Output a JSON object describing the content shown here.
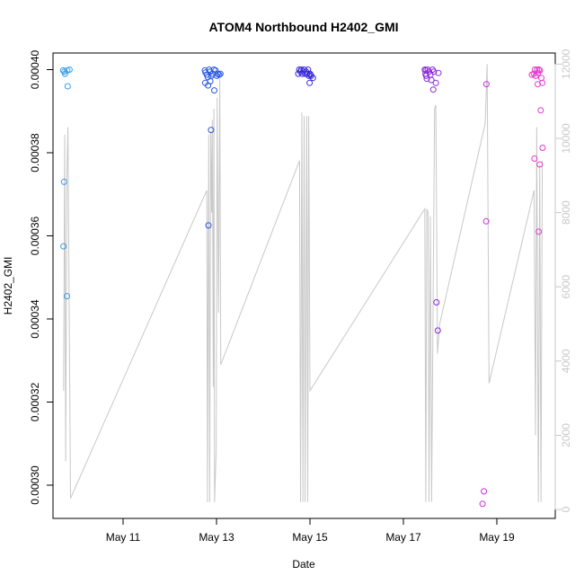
{
  "chart_data": {
    "type": "scatter",
    "title": "ATOM4 Northbound H2402_GMI",
    "xlabel": "Date",
    "ylabel": "H2402_GMI",
    "x_unit": "date",
    "xlim": [
      "2022-05-09T12:00",
      "2022-05-20T06:00"
    ],
    "ylim": [
      0.000292,
      0.000404
    ],
    "y2lim": [
      -240,
      12300
    ],
    "grid": false,
    "legend": "none",
    "x_ticks": [
      {
        "value": "2022-05-11",
        "label": "May 11"
      },
      {
        "value": "2022-05-13",
        "label": "May 13"
      },
      {
        "value": "2022-05-15",
        "label": "May 15"
      },
      {
        "value": "2022-05-17",
        "label": "May 17"
      },
      {
        "value": "2022-05-19",
        "label": "May 19"
      }
    ],
    "y_ticks": [
      {
        "value": 0.0003,
        "label": "0.00030"
      },
      {
        "value": 0.00032,
        "label": "0.00032"
      },
      {
        "value": 0.00034,
        "label": "0.00034"
      },
      {
        "value": 0.00036,
        "label": "0.00036"
      },
      {
        "value": 0.00038,
        "label": "0.00038"
      },
      {
        "value": 0.0004,
        "label": "0.00040"
      }
    ],
    "y2_ticks": [
      {
        "value": 0,
        "label": "0"
      },
      {
        "value": 2000,
        "label": "2000"
      },
      {
        "value": 4000,
        "label": "4000"
      },
      {
        "value": 6000,
        "label": "6000"
      },
      {
        "value": 8000,
        "label": "8000"
      },
      {
        "value": 10000,
        "label": "10000"
      },
      {
        "value": 12000,
        "label": "12000"
      }
    ],
    "colors": {
      "line": "#c8c8c8",
      "axis": "#000000",
      "right_axis": "#c8c8c8",
      "day_colors": [
        "#3a9fe8",
        "#2b59e0",
        "#3a2ad8",
        "#8a2ad8",
        "#cc2ad8",
        "#e33ad0"
      ]
    },
    "line_series": [
      [
        "2022-05-09T17:28",
        3200
      ],
      [
        "2022-05-09T18:00",
        10100
      ],
      [
        "2022-05-09T18:30",
        1300
      ],
      [
        "2022-05-09T19:10",
        9000
      ],
      [
        "2022-05-09T19:40",
        10300
      ],
      [
        "2022-05-09T21:00",
        300
      ],
      [
        "2022-05-12T19:00",
        8600
      ],
      [
        "2022-05-12T19:20",
        200
      ],
      [
        "2022-05-12T20:00",
        10100
      ],
      [
        "2022-05-12T20:30",
        200
      ],
      [
        "2022-05-12T21:00",
        10200
      ],
      [
        "2022-05-12T21:30",
        8000
      ],
      [
        "2022-05-12T21:50",
        10500
      ],
      [
        "2022-05-12T22:20",
        3300
      ],
      [
        "2022-05-12T22:40",
        10800
      ],
      [
        "2022-05-12T23:00",
        200
      ],
      [
        "2022-05-12T23:50",
        1600
      ],
      [
        "2022-05-13T00:20",
        11100
      ],
      [
        "2022-05-13T01:00",
        5300
      ],
      [
        "2022-05-13T01:40",
        11600
      ],
      [
        "2022-05-13T02:10",
        3900
      ],
      [
        "2022-05-14T18:40",
        9400
      ],
      [
        "2022-05-14T19:10",
        200
      ],
      [
        "2022-05-14T19:50",
        10700
      ],
      [
        "2022-05-14T20:20",
        200
      ],
      [
        "2022-05-14T21:00",
        10600
      ],
      [
        "2022-05-14T21:30",
        200
      ],
      [
        "2022-05-14T22:20",
        10600
      ],
      [
        "2022-05-14T22:50",
        200
      ],
      [
        "2022-05-14T23:20",
        10600
      ],
      [
        "2022-05-15T00:00",
        3200
      ],
      [
        "2022-05-17T11:00",
        8100
      ],
      [
        "2022-05-17T11:30",
        200
      ],
      [
        "2022-05-17T12:00",
        8100
      ],
      [
        "2022-05-17T12:40",
        8000
      ],
      [
        "2022-05-17T13:10",
        200
      ],
      [
        "2022-05-17T13:50",
        7900
      ],
      [
        "2022-05-17T14:30",
        200
      ],
      [
        "2022-05-17T16:00",
        10800
      ],
      [
        "2022-05-17T16:40",
        10900
      ],
      [
        "2022-05-17T17:30",
        4200
      ],
      [
        "2022-05-17T18:40",
        5000
      ],
      [
        "2022-05-18T18:00",
        10400
      ],
      [
        "2022-05-18T19:00",
        12000
      ],
      [
        "2022-05-18T20:00",
        3400
      ],
      [
        "2022-05-19T19:10",
        8600
      ],
      [
        "2022-05-19T19:50",
        2000
      ],
      [
        "2022-05-19T20:30",
        10300
      ],
      [
        "2022-05-19T21:20",
        200
      ],
      [
        "2022-05-19T22:00",
        9300
      ],
      [
        "2022-05-19T22:40",
        200
      ],
      [
        "2022-05-19T23:20",
        9400
      ]
    ],
    "points": [
      [
        "2022-05-09T17:10",
        0.0003998,
        0
      ],
      [
        "2022-05-09T17:50",
        0.0003995,
        0
      ],
      [
        "2022-05-09T18:10",
        0.000399,
        0
      ],
      [
        "2022-05-09T19:20",
        0.0003998,
        0
      ],
      [
        "2022-05-09T20:30",
        0.0004,
        0
      ],
      [
        "2022-05-09T19:30",
        0.000396,
        0
      ],
      [
        "2022-05-09T17:40",
        0.000373,
        0
      ],
      [
        "2022-05-09T17:20",
        0.0003575,
        0
      ],
      [
        "2022-05-09T19:10",
        0.0003455,
        0
      ],
      [
        "2022-05-12T18:00",
        0.0003998,
        1
      ],
      [
        "2022-05-12T18:20",
        0.0003993,
        1
      ],
      [
        "2022-05-12T19:00",
        0.0003988,
        1
      ],
      [
        "2022-05-12T19:30",
        0.0003982,
        1
      ],
      [
        "2022-05-12T20:10",
        0.0004,
        1
      ],
      [
        "2022-05-12T20:40",
        0.0003995,
        1
      ],
      [
        "2022-05-12T21:20",
        0.0003985,
        1
      ],
      [
        "2022-05-12T22:00",
        0.000399,
        1
      ],
      [
        "2022-05-12T22:40",
        0.0004,
        1
      ],
      [
        "2022-05-12T23:30",
        0.0003998,
        1
      ],
      [
        "2022-05-13T00:10",
        0.0003985,
        1
      ],
      [
        "2022-05-13T00:40",
        0.000399,
        1
      ],
      [
        "2022-05-13T01:20",
        0.0003988,
        1
      ],
      [
        "2022-05-13T02:00",
        0.000399,
        1
      ],
      [
        "2022-05-12T18:10",
        0.0003968,
        1
      ],
      [
        "2022-05-12T19:40",
        0.0003962,
        1
      ],
      [
        "2022-05-12T20:50",
        0.0003972,
        1
      ],
      [
        "2022-05-12T22:50",
        0.000395,
        1
      ],
      [
        "2022-05-12T21:10",
        0.0003855,
        1
      ],
      [
        "2022-05-12T19:50",
        0.0003625,
        1
      ],
      [
        "2022-05-14T18:00",
        0.000399,
        2
      ],
      [
        "2022-05-14T18:30",
        0.0004,
        2
      ],
      [
        "2022-05-14T19:00",
        0.0003995,
        2
      ],
      [
        "2022-05-14T19:30",
        0.0004,
        2
      ],
      [
        "2022-05-14T20:00",
        0.000399,
        2
      ],
      [
        "2022-05-14T20:30",
        0.0003995,
        2
      ],
      [
        "2022-05-14T21:00",
        0.0004,
        2
      ],
      [
        "2022-05-14T21:30",
        0.000399,
        2
      ],
      [
        "2022-05-14T22:00",
        0.0003995,
        2
      ],
      [
        "2022-05-14T22:30",
        0.000399,
        2
      ],
      [
        "2022-05-14T23:00",
        0.0004,
        2
      ],
      [
        "2022-05-14T23:30",
        0.0003985,
        2
      ],
      [
        "2022-05-15T00:00",
        0.000399,
        2
      ],
      [
        "2022-05-15T00:40",
        0.0003985,
        2
      ],
      [
        "2022-05-15T01:30",
        0.000398,
        2
      ],
      [
        "2022-05-14T23:50",
        0.0003968,
        2
      ],
      [
        "2022-05-15T00:10",
        0.0003988,
        2
      ],
      [
        "2022-05-17T11:00",
        0.0004,
        3
      ],
      [
        "2022-05-17T11:20",
        0.000399,
        3
      ],
      [
        "2022-05-17T11:40",
        0.0003985,
        3
      ],
      [
        "2022-05-17T12:00",
        0.0003978,
        3
      ],
      [
        "2022-05-17T12:30",
        0.0004,
        3
      ],
      [
        "2022-05-17T13:10",
        0.0003995,
        3
      ],
      [
        "2022-05-17T13:50",
        0.0003988,
        3
      ],
      [
        "2022-05-17T14:20",
        0.0003975,
        3
      ],
      [
        "2022-05-17T15:00",
        0.0004,
        3
      ],
      [
        "2022-05-17T15:40",
        0.0003995,
        3
      ],
      [
        "2022-05-17T16:40",
        0.0003968,
        3
      ],
      [
        "2022-05-17T15:20",
        0.0003952,
        3
      ],
      [
        "2022-05-17T18:00",
        0.0003992,
        3
      ],
      [
        "2022-05-17T11:30",
        0.0003998,
        3
      ],
      [
        "2022-05-17T17:00",
        0.000344,
        3
      ],
      [
        "2022-05-17T17:40",
        0.0003372,
        3
      ],
      [
        "2022-05-18T18:40",
        0.0003965,
        4
      ],
      [
        "2022-05-18T18:30",
        0.0003635,
        4
      ],
      [
        "2022-05-18T17:20",
        0.0002985,
        4
      ],
      [
        "2022-05-18T16:40",
        0.0002955,
        4
      ],
      [
        "2022-05-19T18:00",
        0.0003988,
        5
      ],
      [
        "2022-05-19T19:00",
        0.000399,
        5
      ],
      [
        "2022-05-19T19:30",
        0.0004,
        5
      ],
      [
        "2022-05-19T20:00",
        0.0003985,
        5
      ],
      [
        "2022-05-19T20:40",
        0.0004,
        5
      ],
      [
        "2022-05-19T21:10",
        0.0003992,
        5
      ],
      [
        "2022-05-19T21:40",
        0.0004,
        5
      ],
      [
        "2022-05-19T22:10",
        0.0003998,
        5
      ],
      [
        "2022-05-19T22:50",
        0.000398,
        5
      ],
      [
        "2022-05-19T23:20",
        0.0003968,
        5
      ],
      [
        "2022-05-19T21:00",
        0.0003965,
        5
      ],
      [
        "2022-05-19T22:30",
        0.0003902,
        5
      ],
      [
        "2022-05-19T23:30",
        0.0003812,
        5
      ],
      [
        "2022-05-19T19:20",
        0.0003786,
        5
      ],
      [
        "2022-05-19T22:00",
        0.0003772,
        5
      ],
      [
        "2022-05-19T21:30",
        0.000361,
        5
      ]
    ]
  }
}
